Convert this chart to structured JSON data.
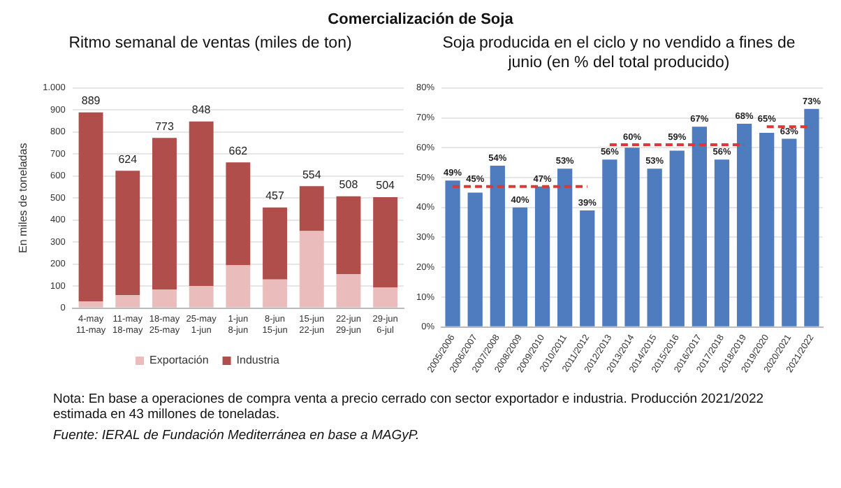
{
  "chart_data": [
    {
      "type": "bar",
      "title": "Ritmo semanal de ventas (miles de ton)",
      "ylabel": "En miles de toneladas",
      "stacked": true,
      "legend": "bottom",
      "grid": "y",
      "categories": [
        "4-may\n11-may",
        "11-may\n18-may",
        "18-may\n25-may",
        "25-may\n1-jun",
        "1-jun\n8-jun",
        "8-jun\n15-jun",
        "15-jun\n22-jun",
        "22-jun\n29-jun",
        "29-jun\n6-jul"
      ],
      "series": [
        {
          "name": "Exportación",
          "color": "#ebbcbc",
          "values": [
            30,
            60,
            85,
            100,
            195,
            130,
            350,
            155,
            95
          ]
        },
        {
          "name": "Industria",
          "color": "#b04e4b",
          "values": [
            859,
            564,
            688,
            748,
            467,
            327,
            204,
            353,
            409
          ]
        }
      ],
      "totals": [
        "889",
        "624",
        "773",
        "848",
        "662",
        "457",
        "554",
        "508",
        "504"
      ],
      "ylim": [
        0,
        1000
      ],
      "yticks": [
        0,
        100,
        200,
        300,
        400,
        500,
        600,
        700,
        800,
        900,
        {
          "value": 1000,
          "label": "1.000"
        }
      ],
      "annotations": [
        "Comercialización de Soja",
        "Nota: En base a operaciones de compra venta a precio cerrado con sector exportador e industria. Producción 2021/2022 estimada en 43 millones de toneladas.",
        "Fuente: IERAL de Fundación Mediterránea en base a MAGyP."
      ]
    },
    {
      "type": "bar",
      "title": "Soja producida en el ciclo y no vendido a fines de junio (en % del total producido)",
      "grid": "y",
      "categories": [
        "2005/2006",
        "2006/2007",
        "2007/2008",
        "2008/2009",
        "2009/2010",
        "2010/2011",
        "2011/2012",
        "2012/2013",
        "2013/2014",
        "2014/2015",
        "2015/2016",
        "2016/2017",
        "2017/2018",
        "2018/2019",
        "2019/2020",
        "2020/2021",
        "2021/2022"
      ],
      "series": [
        {
          "color": "#4f7bbf",
          "values": [
            49,
            45,
            54,
            40,
            47,
            53,
            39,
            56,
            60,
            53,
            59,
            67,
            56,
            68,
            65,
            63,
            73
          ],
          "value_labels": [
            "49%",
            "45%",
            "54%",
            "40%",
            "47%",
            "53%",
            "39%",
            "56%",
            "60%",
            "53%",
            "59%",
            "67%",
            "56%",
            "68%",
            "65%",
            "63%",
            "73%"
          ]
        },
        {
          "type": "line",
          "color": "#d93a35",
          "line_style": "dashed",
          "marker": "none",
          "values": [
            47,
            47,
            47,
            47,
            47,
            47,
            47,
            null,
            null,
            null,
            null,
            null,
            null,
            null,
            null,
            null,
            null
          ]
        },
        {
          "type": "line",
          "color": "#d93a35",
          "line_style": "dashed",
          "marker": "none",
          "values": [
            null,
            null,
            null,
            null,
            null,
            null,
            null,
            61,
            61,
            61,
            61,
            61,
            61,
            61,
            null,
            null,
            null
          ]
        },
        {
          "type": "line",
          "color": "#d93a35",
          "line_style": "dashed",
          "marker": "none",
          "values": [
            null,
            null,
            null,
            null,
            null,
            null,
            null,
            null,
            null,
            null,
            null,
            null,
            null,
            null,
            67,
            67,
            67
          ]
        }
      ],
      "ylim": [
        0,
        80
      ],
      "yticks": [
        {
          "value": 0,
          "label": "0%"
        },
        {
          "value": 10,
          "label": "10%"
        },
        {
          "value": 20,
          "label": "20%"
        },
        {
          "value": 30,
          "label": "30%"
        },
        {
          "value": 40,
          "label": "40%"
        },
        {
          "value": 50,
          "label": "50%"
        },
        {
          "value": 60,
          "label": "60%"
        },
        {
          "value": 70,
          "label": "70%"
        },
        {
          "value": 80,
          "label": "80%"
        }
      ]
    }
  ]
}
